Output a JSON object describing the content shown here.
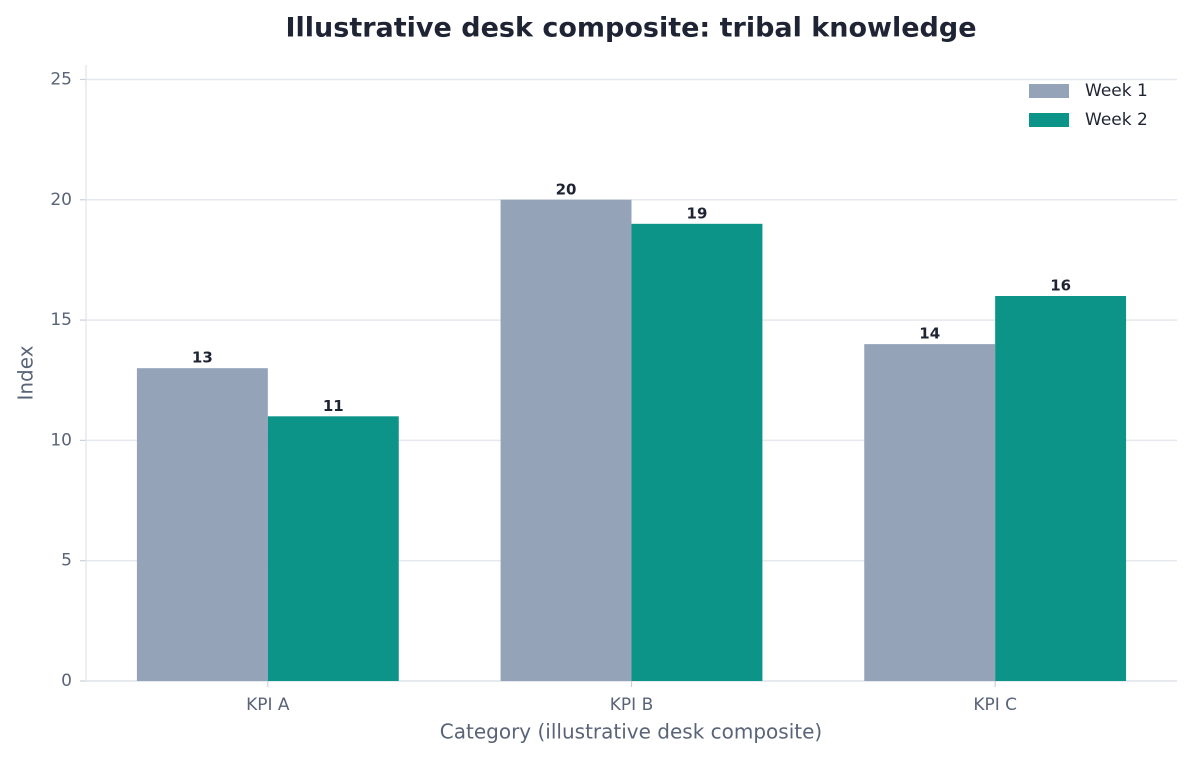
{
  "chart_data": {
    "type": "bar",
    "title": "Illustrative desk composite: tribal knowledge",
    "x_label": "Category (illustrative desk composite)",
    "y_label": "Index",
    "categories": [
      "KPI A",
      "KPI B",
      "KPI C"
    ],
    "series": [
      {
        "name": "Week 1",
        "color": "#94a3b8",
        "values": [
          13,
          20,
          14
        ]
      },
      {
        "name": "Week 2",
        "color": "#0d9488",
        "values": [
          11,
          19,
          16
        ]
      }
    ],
    "ylim": [
      0,
      25.6
    ],
    "yticks": [
      0,
      5,
      10,
      15,
      20,
      25
    ],
    "grid": true,
    "legend": "upper-right"
  }
}
